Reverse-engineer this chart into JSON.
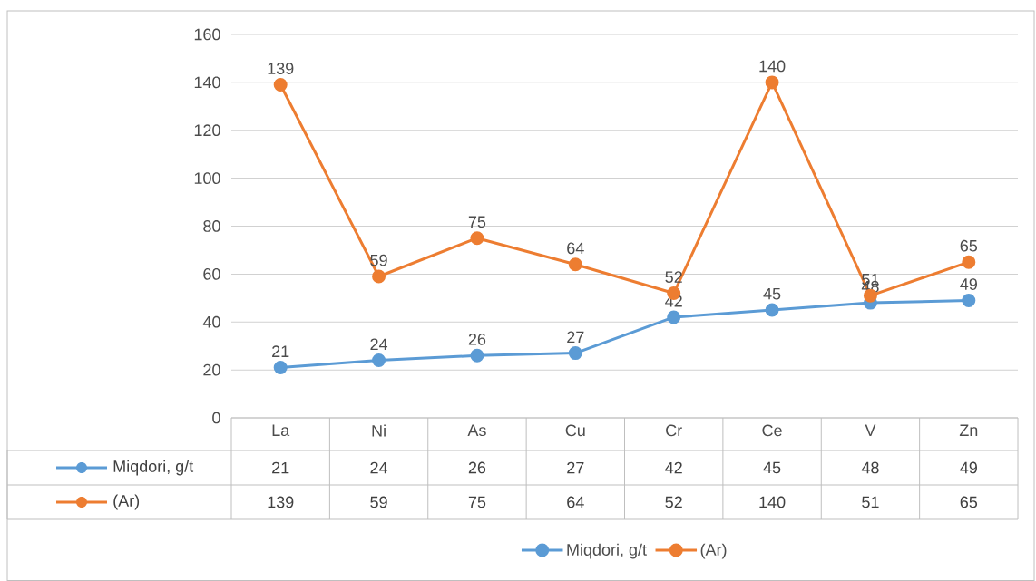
{
  "chart_data": {
    "type": "line",
    "categories": [
      "La",
      "Ni",
      "As",
      "Cu",
      "Cr",
      "Ce",
      "V",
      "Zn"
    ],
    "series": [
      {
        "name": "Miqdori, g/t",
        "color": "#5b9bd5",
        "values": [
          21,
          24,
          26,
          27,
          42,
          45,
          48,
          49
        ],
        "value_labels": [
          "21",
          "24",
          "26",
          "27",
          "42",
          "45",
          "48",
          "49"
        ]
      },
      {
        "name": "(Ar)",
        "color": "#ed7d31",
        "values": [
          139,
          59,
          75,
          64,
          52,
          140,
          51,
          65
        ],
        "value_labels": [
          "139",
          "59",
          "75",
          "64",
          "52",
          "140",
          "51",
          "65"
        ]
      }
    ],
    "ylim": [
      0,
      160
    ],
    "yticks": [
      0,
      20,
      40,
      60,
      80,
      100,
      120,
      140,
      160
    ],
    "grid": "y",
    "legend": "bottom",
    "marker": "circle",
    "line_style": "solid"
  }
}
